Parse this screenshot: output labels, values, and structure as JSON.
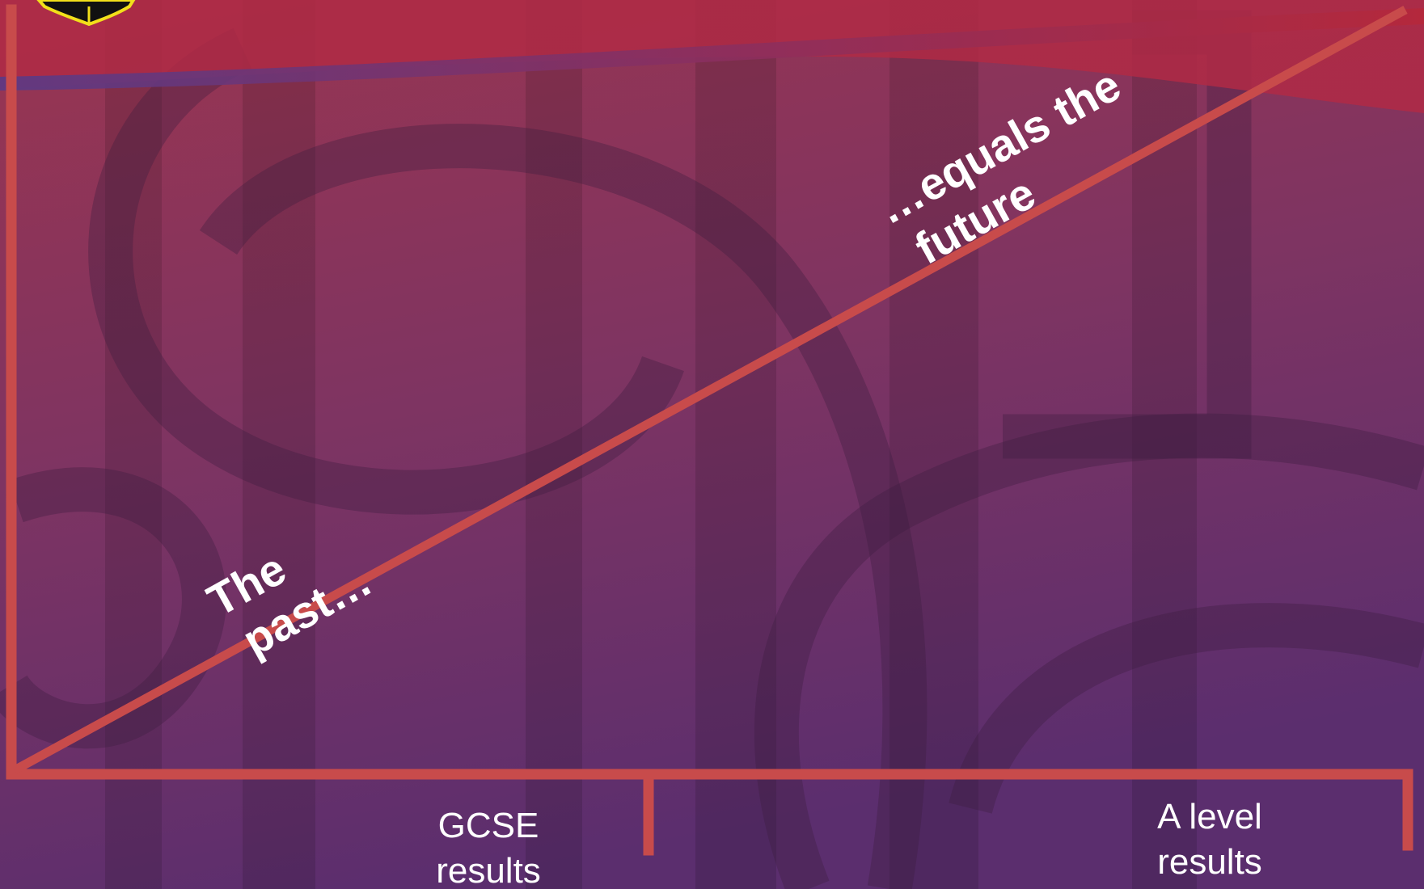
{
  "diagram": {
    "start_label": [
      "The",
      "past…"
    ],
    "end_label": [
      "…equals the",
      "future"
    ],
    "axis_labels": [
      [
        "GCSE",
        "results"
      ],
      [
        "A level",
        "results"
      ]
    ]
  }
}
